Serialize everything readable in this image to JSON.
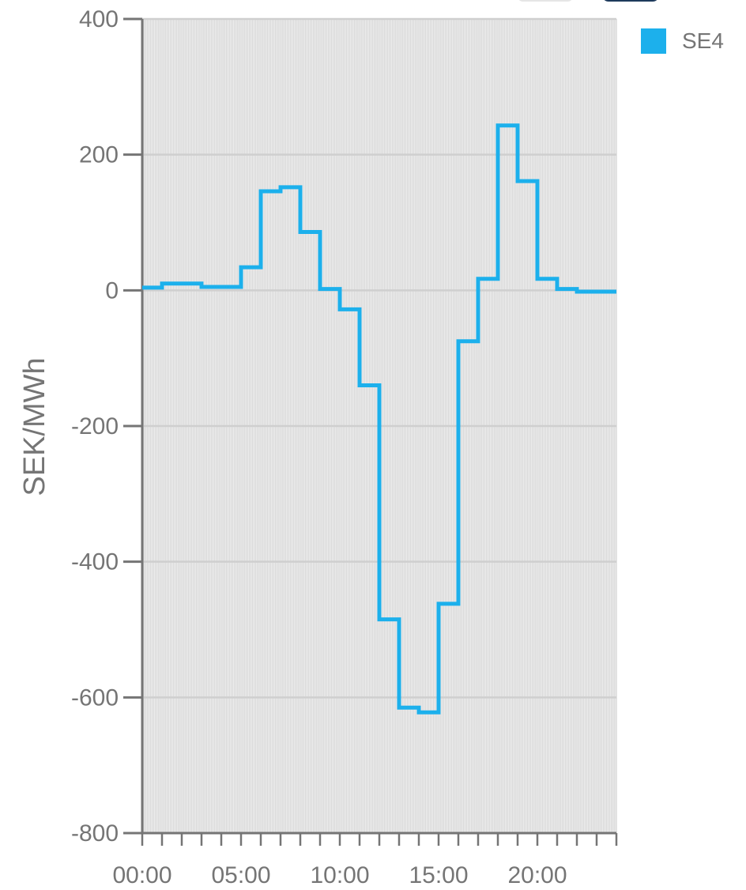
{
  "chart_data": {
    "type": "line",
    "step": true,
    "ylabel": "SEK/MWh",
    "ylim": [
      -800,
      400
    ],
    "yticks": [
      "400",
      "200",
      "0",
      "-200",
      "-400",
      "-600",
      "-800"
    ],
    "yticks_values": [
      400,
      200,
      0,
      -200,
      -400,
      -600,
      -800
    ],
    "xlim_hours": [
      0,
      24
    ],
    "xticks": [
      "00:00",
      "05:00",
      "10:00",
      "15:00",
      "20:00"
    ],
    "grid": true,
    "legend_position": "top-right",
    "series": [
      {
        "name": "SE4",
        "color": "#1cb0ec",
        "hours": [
          0,
          1,
          2,
          3,
          4,
          5,
          6,
          7,
          8,
          9,
          10,
          11,
          12,
          13,
          14,
          15,
          16,
          17,
          18,
          19,
          20,
          21,
          22,
          23
        ],
        "values": [
          4,
          10,
          10,
          5,
          5,
          34,
          146,
          152,
          86,
          2,
          -28,
          -140,
          -485,
          -615,
          -622,
          -462,
          -75,
          17,
          243,
          161,
          17,
          2,
          -2,
          -2
        ]
      }
    ]
  }
}
